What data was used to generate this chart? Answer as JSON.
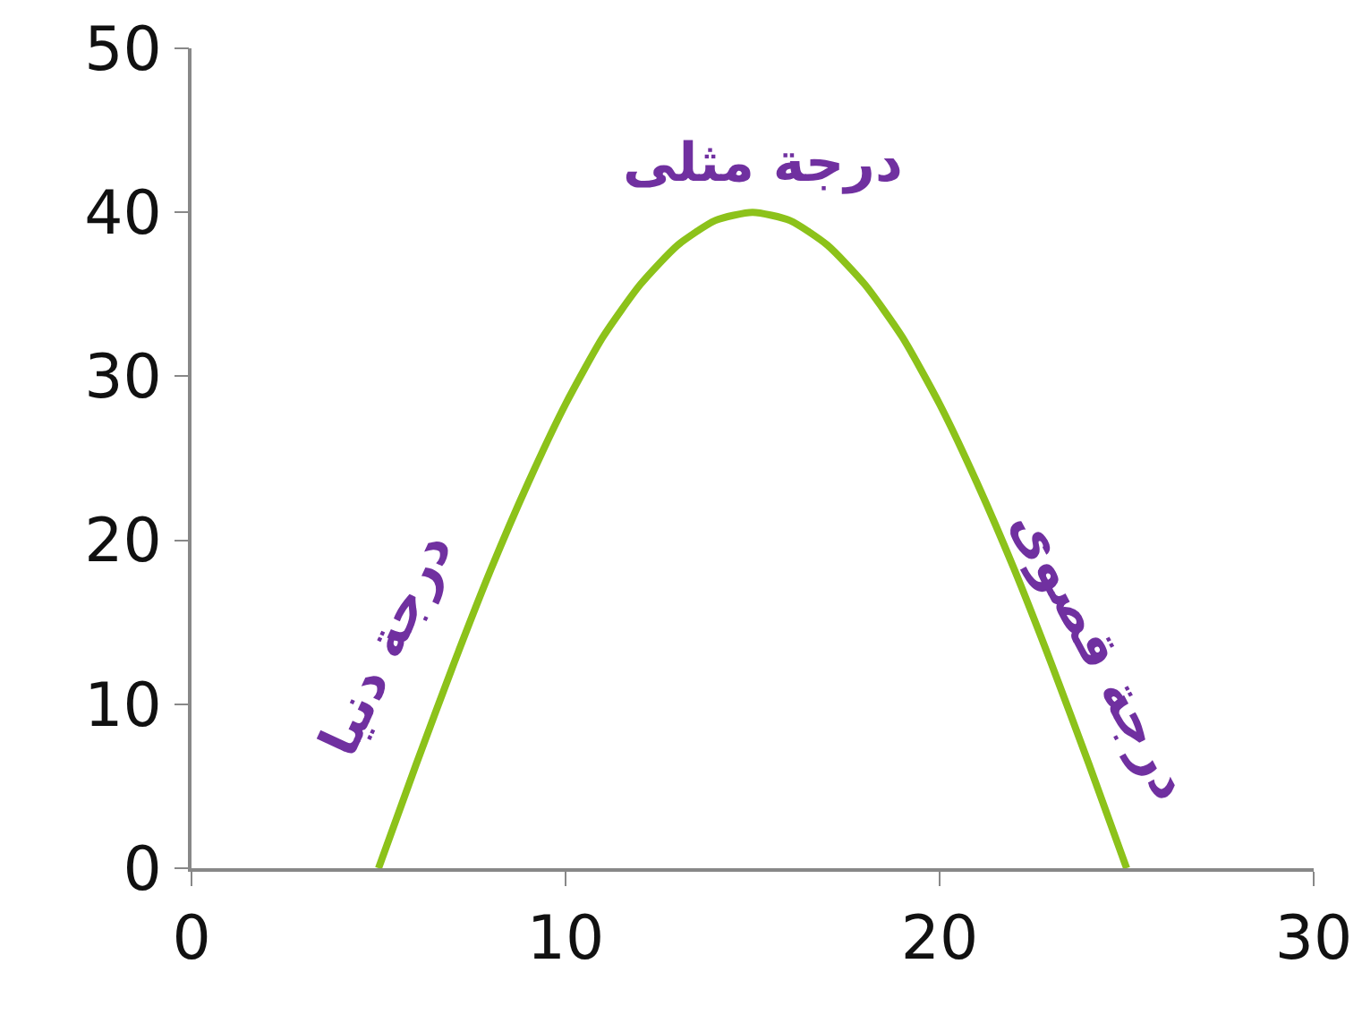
{
  "chart_data": {
    "type": "line",
    "x": [
      5,
      6,
      7,
      8,
      9,
      10,
      11,
      12,
      13,
      14,
      15,
      16,
      17,
      18,
      19,
      20,
      21,
      22,
      23,
      24,
      25
    ],
    "values": [
      0,
      6.3,
      12.4,
      18.2,
      23.5,
      28.3,
      32.4,
      35.6,
      38,
      39.5,
      40,
      39.5,
      38,
      35.6,
      32.4,
      28.3,
      23.5,
      18.2,
      12.4,
      6.3,
      0
    ],
    "color": "#8cc21a",
    "marker": "none",
    "line_style": "solid",
    "grid": false,
    "xlim": [
      0,
      30
    ],
    "ylim": [
      0,
      50
    ],
    "xticks": [
      0,
      10,
      20,
      30
    ],
    "yticks": [
      0,
      10,
      20,
      30,
      40,
      50
    ],
    "annotations": [
      {
        "text": "درجة مثلى",
        "x": 15,
        "y": 40
      },
      {
        "text": "درجة دنيا",
        "x": 5,
        "y": 0
      },
      {
        "text": "درجة قصوى",
        "x": 25,
        "y": 0
      }
    ]
  }
}
